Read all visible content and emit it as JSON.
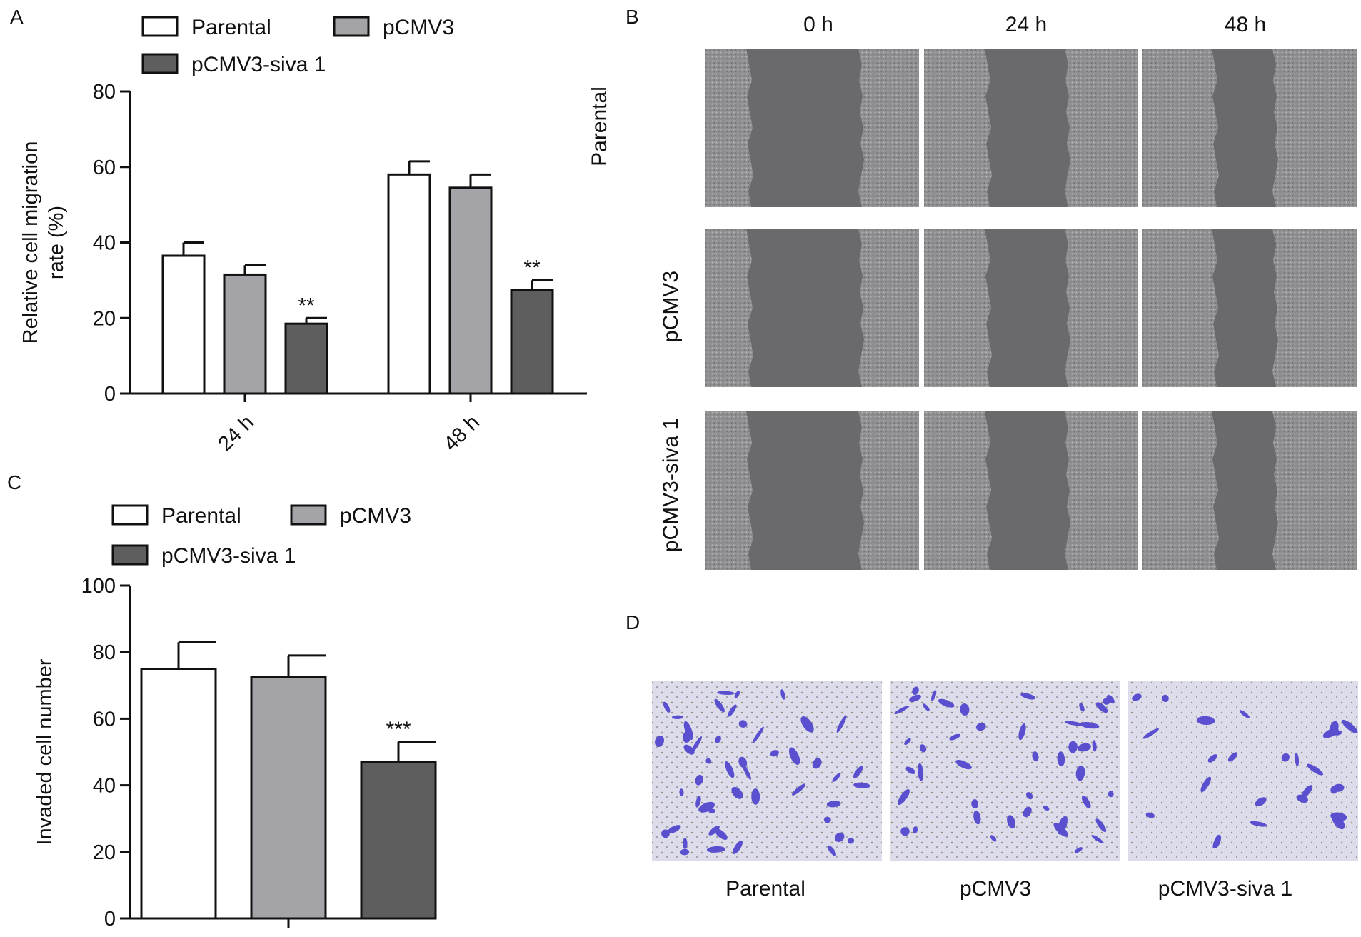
{
  "panels": {
    "A": "A",
    "B": "B",
    "C": "C",
    "D": "D"
  },
  "colors": {
    "parental": "#ffffff",
    "pcmv3": "#a3a3a8",
    "siva": "#5e5e5e",
    "wound_gap": "#6a6a6c",
    "cell_area": "#8c8c8e",
    "transwell_bg": "#d8d9e8",
    "stained_cell": "#5a4fcf"
  },
  "chart_data": [
    {
      "type": "bar",
      "panel": "A",
      "categories": [
        "24 h",
        "48 h"
      ],
      "series": [
        {
          "name": "Parental",
          "values": [
            36.5,
            58.0
          ],
          "errors": [
            3.5,
            3.5
          ]
        },
        {
          "name": "pCMV3",
          "values": [
            31.5,
            54.5
          ],
          "errors": [
            2.5,
            3.5
          ]
        },
        {
          "name": "pCMV3-siva 1",
          "values": [
            18.5,
            27.5
          ],
          "errors": [
            1.5,
            2.5
          ]
        }
      ],
      "annotations": [
        {
          "category": "24 h",
          "series": "pCMV3-siva 1",
          "text": "**"
        },
        {
          "category": "48 h",
          "series": "pCMV3-siva 1",
          "text": "**"
        }
      ],
      "ylabel": "Relative cell migration rate (%)",
      "ylim": [
        0,
        80
      ],
      "yticks": [
        0,
        20,
        40,
        60,
        80
      ],
      "grid": false,
      "legend": "top"
    },
    {
      "type": "bar",
      "panel": "C",
      "categories": [
        ""
      ],
      "series": [
        {
          "name": "Parental",
          "values": [
            75
          ],
          "errors": [
            8
          ]
        },
        {
          "name": "pCMV3",
          "values": [
            72.5
          ],
          "errors": [
            6.5
          ]
        },
        {
          "name": "pCMV3-siva 1",
          "values": [
            47
          ],
          "errors": [
            6
          ]
        }
      ],
      "annotations": [
        {
          "category": "",
          "series": "pCMV3-siva 1",
          "text": "***"
        }
      ],
      "ylabel": "Invaded cell number",
      "ylim": [
        0,
        100
      ],
      "yticks": [
        0,
        20,
        40,
        60,
        80,
        100
      ],
      "grid": false,
      "legend": "top"
    }
  ],
  "wound_assay": {
    "columns": [
      "0 h",
      "24 h",
      "48 h"
    ],
    "rows": [
      "Parental",
      "pCMV3",
      "pCMV3-siva 1"
    ]
  },
  "transwell": {
    "labels": [
      "Parental",
      "pCMV3",
      "pCMV3-siva 1"
    ]
  }
}
